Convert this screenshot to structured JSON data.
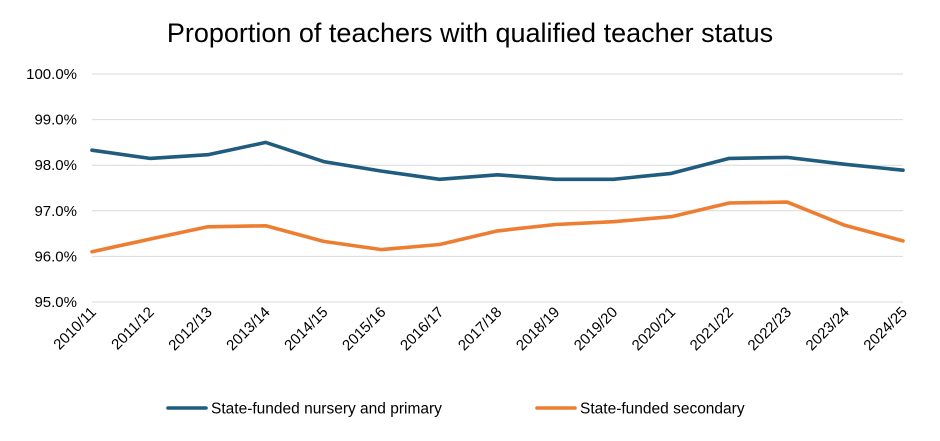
{
  "chart_data": {
    "type": "line",
    "title": "Proportion of teachers with qualified teacher status",
    "xlabel": "",
    "ylabel": "",
    "categories": [
      "2010/11",
      "2011/12",
      "2012/13",
      "2013/14",
      "2014/15",
      "2015/16",
      "2016/17",
      "2017/18",
      "2018/19",
      "2019/20",
      "2020/21",
      "2021/22",
      "2022/23",
      "2023/24",
      "2024/25"
    ],
    "ylim": [
      95.0,
      100.0
    ],
    "yticks": [
      "95.0%",
      "96.0%",
      "97.0%",
      "98.0%",
      "99.0%",
      "100.0%"
    ],
    "grid": true,
    "legend_position": "bottom",
    "series": [
      {
        "name": "State-funded nursery and primary",
        "color": "#1F5C7E",
        "values": [
          98.33,
          98.15,
          98.23,
          98.5,
          98.08,
          97.87,
          97.69,
          97.79,
          97.69,
          97.69,
          97.82,
          98.15,
          98.17,
          98.02,
          97.89
        ]
      },
      {
        "name": "State-funded secondary",
        "color": "#ED7D31",
        "values": [
          96.1,
          96.38,
          96.65,
          96.67,
          96.33,
          96.15,
          96.26,
          96.56,
          96.7,
          96.76,
          96.87,
          97.17,
          97.19,
          96.68,
          96.34
        ]
      }
    ]
  }
}
